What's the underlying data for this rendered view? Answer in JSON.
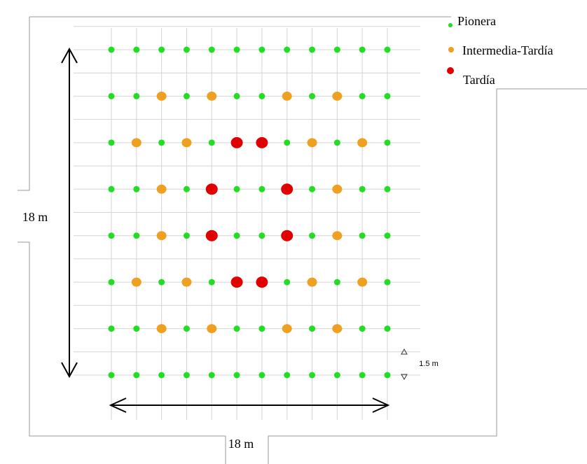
{
  "legend": {
    "items": [
      {
        "label": "Pionera",
        "color": "#22dd22",
        "size": "small"
      },
      {
        "label": "Intermedia-Tardía",
        "color": "#f0a020",
        "size": "medium"
      },
      {
        "label": "Tardía",
        "color": "#e00000",
        "size": "large"
      }
    ]
  },
  "dimensions": {
    "height_label": "18 m",
    "width_label": "18 m",
    "spacing_label": "1.5 m"
  },
  "layout_grid": {
    "columns": 12,
    "rows": 8,
    "cells": [
      "PPPPPPPPPPPP",
      "PPIPIPPIPIPP",
      "PIPIPTTPIPIP",
      "PPIPTPPTPIPP",
      "PPIPTPPTPIPP",
      "PIPIPTTPIPIP",
      "PPIPIPPIPIPP",
      "PPPPPPPPPPPP"
    ]
  }
}
